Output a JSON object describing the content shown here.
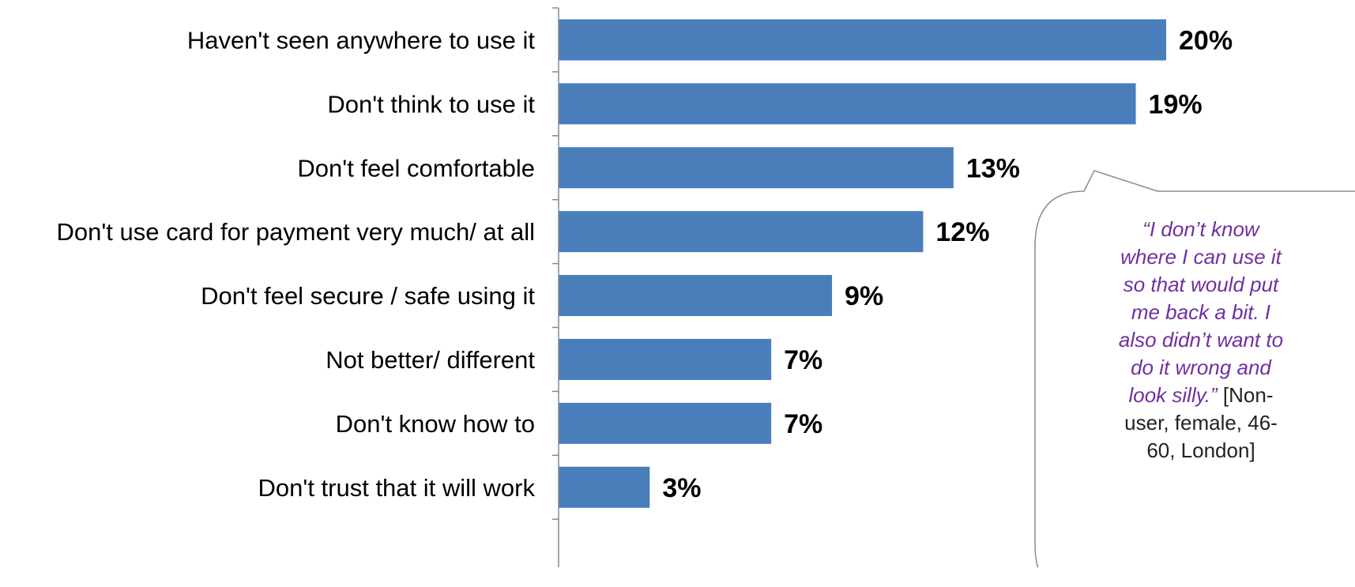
{
  "colors": {
    "bar": "#4A7EBB",
    "axis": "#888888",
    "quote_text": "#7030A0",
    "bubble_border": "#8C8C8C"
  },
  "chart_data": {
    "type": "bar",
    "orientation": "horizontal",
    "categories": [
      "Haven't seen anywhere to use it",
      "Don't think to use it",
      "Don't feel comfortable",
      "Don't use card for payment very much/ at all",
      "Don't feel secure / safe using it",
      "Not better/ different",
      "Don't know how to",
      "Don't trust that it will work"
    ],
    "values": [
      20,
      19,
      13,
      12,
      9,
      7,
      7,
      3
    ],
    "value_labels": [
      "20%",
      "19%",
      "13%",
      "12%",
      "9%",
      "7%",
      "7%",
      "3%"
    ],
    "xlim": [
      0,
      20
    ],
    "grid": false,
    "legend": "none"
  },
  "annotation": {
    "quote_lines": [
      "“I don’t know",
      "where I can use it",
      "so that would put",
      "me back a bit. I",
      "also didn’t want to",
      "do it wrong and",
      "look silly.”"
    ],
    "attribution_first": "[Non-",
    "attribution_lines": [
      "user, female, 46-",
      "60, London]"
    ]
  }
}
